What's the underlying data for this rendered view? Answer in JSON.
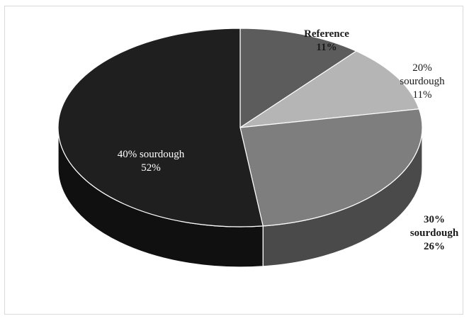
{
  "chart_data": {
    "type": "pie",
    "title": "",
    "style": "3d",
    "legend": "none",
    "slices": [
      {
        "label_lines": [
          "Reference"
        ],
        "percent_label": "11%",
        "value": 11,
        "color": "#5c5c5c",
        "side_color": "#3a3a3a",
        "label_color": "#1a1a1a",
        "label_bold": true
      },
      {
        "label_lines": [
          "20%",
          "sourdough"
        ],
        "percent_label": "11%",
        "value": 11,
        "color": "#b5b5b5",
        "side_color": "#8a8a8a",
        "label_color": "#1a1a1a",
        "label_bold": false
      },
      {
        "label_lines": [
          "30%",
          "sourdough"
        ],
        "percent_label": "26%",
        "value": 26,
        "color": "#7e7e7e",
        "side_color": "#4a4a4a",
        "label_color": "#1a1a1a",
        "label_bold": true
      },
      {
        "label_lines": [
          "40% sourdough"
        ],
        "percent_label": "52%",
        "value": 52,
        "color": "#1f1f1f",
        "side_color": "#101010",
        "label_color": "#ffffff",
        "label_bold": false
      }
    ]
  }
}
